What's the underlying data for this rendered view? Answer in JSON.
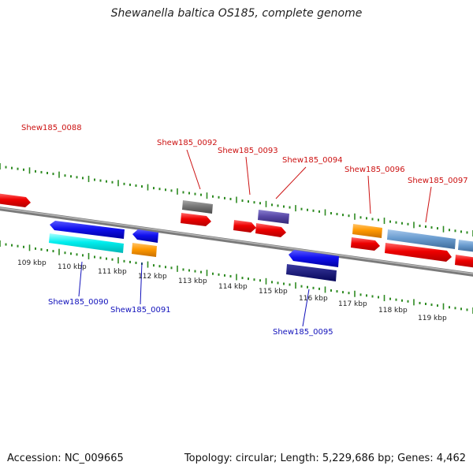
{
  "title": "Shewanella baltica OS185, complete genome",
  "footer": {
    "accession": "Accession: NC_009665",
    "summary": "Topology: circular; Length: 5,229,686 bp; Genes: 4,462"
  },
  "colors": {
    "backbone": "#8a8a8a",
    "tick": "#2e8b22",
    "forward_label": "#cc1111",
    "reverse_label": "#1111bb"
  },
  "kbp_labels": [
    "109 kbp",
    "110 kbp",
    "111 kbp",
    "112 kbp",
    "113 kbp",
    "114 kbp",
    "115 kbp",
    "116 kbp",
    "117 kbp",
    "118 kbp",
    "119 kbp"
  ],
  "labels": [
    {
      "text": "Shew185_0088",
      "strand": "forward"
    },
    {
      "text": "Shew185_0092",
      "strand": "forward"
    },
    {
      "text": "Shew185_0093",
      "strand": "forward"
    },
    {
      "text": "Shew185_0094",
      "strand": "forward"
    },
    {
      "text": "Shew185_0096",
      "strand": "forward"
    },
    {
      "text": "Shew185_0097",
      "strand": "forward"
    },
    {
      "text": "Shew185_0090",
      "strand": "reverse"
    },
    {
      "text": "Shew185_0091",
      "strand": "reverse"
    },
    {
      "text": "Shew185_0095",
      "strand": "reverse"
    }
  ]
}
